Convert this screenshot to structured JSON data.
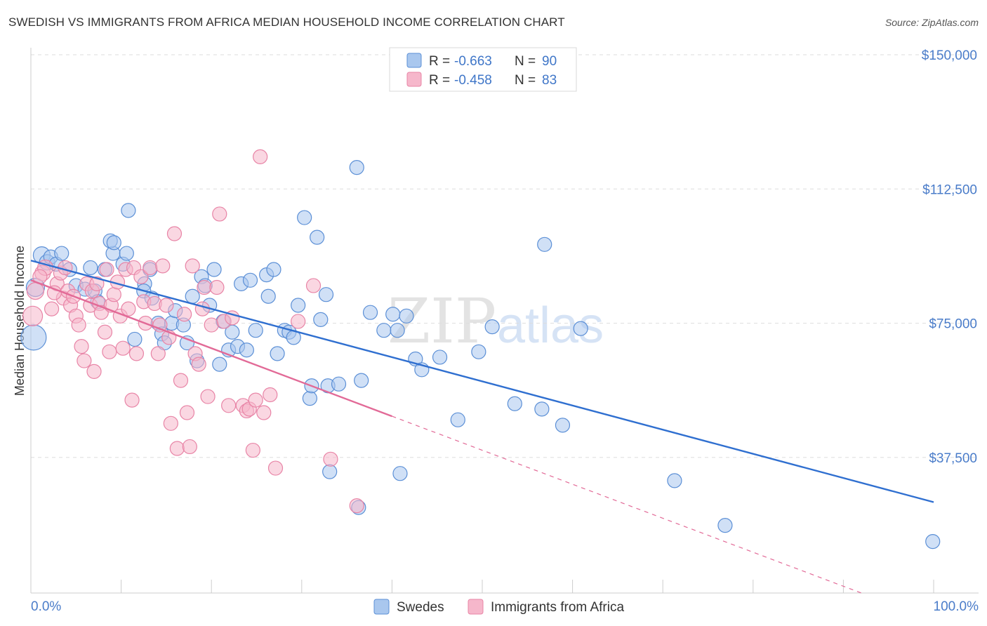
{
  "title": "SWEDISH VS IMMIGRANTS FROM AFRICA MEDIAN HOUSEHOLD INCOME CORRELATION CHART",
  "source": "Source: ZipAtlas.com",
  "watermark": {
    "zip": "ZIP",
    "atlas": "atlas"
  },
  "colors": {
    "swedes_fill": "#a9c7ee",
    "swedes_stroke": "#5b8fd6",
    "swedes_line": "#2f6fd0",
    "africa_fill": "#f6b7cb",
    "africa_stroke": "#e884a6",
    "africa_line": "#e26a97",
    "grid": "#dedede",
    "axis_text": "#4a7cc9"
  },
  "legend": {
    "rows": [
      {
        "r_label": "R =",
        "r_value": "-0.663",
        "n_label": "N =",
        "n_value": "90",
        "series": "swedes"
      },
      {
        "r_label": "R =",
        "r_value": "-0.458",
        "n_label": "N =",
        "n_value": "83",
        "series": "africa"
      }
    ]
  },
  "bottom_legend": [
    {
      "label": "Swedes",
      "series": "swedes"
    },
    {
      "label": "Immigrants from Africa",
      "series": "africa"
    }
  ],
  "chart_data": {
    "type": "scatter",
    "title": "SWEDISH VS IMMIGRANTS FROM AFRICA MEDIAN HOUSEHOLD INCOME CORRELATION CHART",
    "xlabel": "",
    "ylabel": "Median Household Income",
    "xlim": [
      0,
      100
    ],
    "ylim": [
      0,
      160000
    ],
    "x_ticks": [
      {
        "value": 0,
        "label": "0.0%"
      },
      {
        "value": 100,
        "label": "100.0%"
      }
    ],
    "y_ticks": [
      {
        "value": 37500,
        "label": "$37,500"
      },
      {
        "value": 75000,
        "label": "$75,000"
      },
      {
        "value": 112500,
        "label": "$112,500"
      },
      {
        "value": 150000,
        "label": "$150,000"
      }
    ],
    "grid": true,
    "legend_position": "top-center",
    "series": [
      {
        "name": "Swedes",
        "key": "swedes",
        "r": -0.663,
        "n": 90,
        "trend": {
          "x": [
            0,
            100
          ],
          "y": [
            92500,
            25000
          ],
          "dashed_from": null
        },
        "points": [
          [
            0.3,
            71000,
            18
          ],
          [
            0.5,
            85000,
            13
          ],
          [
            1.2,
            94000,
            12
          ],
          [
            1.8,
            92000,
            11
          ],
          [
            2.2,
            93500,
            10
          ],
          [
            2.8,
            91500,
            10
          ],
          [
            3.4,
            94500,
            10
          ],
          [
            4.3,
            90000,
            10
          ],
          [
            5.0,
            85500,
            10
          ],
          [
            6.0,
            84500,
            10
          ],
          [
            7.1,
            84000,
            10
          ],
          [
            7.4,
            81000,
            10
          ],
          [
            6.6,
            90500,
            10
          ],
          [
            8.2,
            90000,
            10
          ],
          [
            9.1,
            94500,
            10
          ],
          [
            8.8,
            98000,
            10
          ],
          [
            9.2,
            97500,
            10
          ],
          [
            10.2,
            91500,
            10
          ],
          [
            10.6,
            94500,
            10
          ],
          [
            10.8,
            106500,
            10
          ],
          [
            11.5,
            70500,
            10
          ],
          [
            12.6,
            86000,
            10
          ],
          [
            12.5,
            84000,
            10
          ],
          [
            13.4,
            82000,
            10
          ],
          [
            13.2,
            90000,
            10
          ],
          [
            14.1,
            75000,
            10
          ],
          [
            14.5,
            72000,
            10
          ],
          [
            14.8,
            69500,
            10
          ],
          [
            15.6,
            75000,
            10
          ],
          [
            16.0,
            78500,
            10
          ],
          [
            16.9,
            74500,
            10
          ],
          [
            17.3,
            69500,
            10
          ],
          [
            17.9,
            82500,
            10
          ],
          [
            18.4,
            64500,
            10
          ],
          [
            18.9,
            88000,
            10
          ],
          [
            19.3,
            85500,
            10
          ],
          [
            19.8,
            80000,
            10
          ],
          [
            20.3,
            90000,
            10
          ],
          [
            20.9,
            63500,
            10
          ],
          [
            21.3,
            75500,
            10
          ],
          [
            21.9,
            67500,
            10
          ],
          [
            22.3,
            72500,
            10
          ],
          [
            22.9,
            68500,
            10
          ],
          [
            23.3,
            86000,
            10
          ],
          [
            23.9,
            67500,
            10
          ],
          [
            24.3,
            87000,
            10
          ],
          [
            24.9,
            73000,
            10
          ],
          [
            26.1,
            88500,
            10
          ],
          [
            26.3,
            82500,
            10
          ],
          [
            26.9,
            90000,
            10
          ],
          [
            27.3,
            66500,
            10
          ],
          [
            28.1,
            73000,
            10
          ],
          [
            28.6,
            72500,
            10
          ],
          [
            29.1,
            71000,
            10
          ],
          [
            29.6,
            80000,
            10
          ],
          [
            30.3,
            104500,
            10
          ],
          [
            30.9,
            54000,
            10
          ],
          [
            31.1,
            57500,
            10
          ],
          [
            31.7,
            99000,
            10
          ],
          [
            32.1,
            76000,
            10
          ],
          [
            32.7,
            83000,
            10
          ],
          [
            32.9,
            57500,
            10
          ],
          [
            33.1,
            33500,
            10
          ],
          [
            34.1,
            58000,
            10
          ],
          [
            36.1,
            118500,
            10
          ],
          [
            36.6,
            59000,
            10
          ],
          [
            36.3,
            23500,
            10
          ],
          [
            37.6,
            78000,
            10
          ],
          [
            39.1,
            73000,
            10
          ],
          [
            40.1,
            77500,
            10
          ],
          [
            40.6,
            73000,
            10
          ],
          [
            40.9,
            33000,
            10
          ],
          [
            41.6,
            77000,
            10
          ],
          [
            42.6,
            65000,
            10
          ],
          [
            43.3,
            62000,
            10
          ],
          [
            45.3,
            65500,
            10
          ],
          [
            47.3,
            48000,
            10
          ],
          [
            49.6,
            67000,
            10
          ],
          [
            51.1,
            74000,
            10
          ],
          [
            53.6,
            52500,
            10
          ],
          [
            56.6,
            51000,
            10
          ],
          [
            56.9,
            97000,
            10
          ],
          [
            58.9,
            46500,
            10
          ],
          [
            60.9,
            73500,
            10
          ],
          [
            71.3,
            31000,
            10
          ],
          [
            76.9,
            18500,
            10
          ],
          [
            99.9,
            14000,
            10
          ]
        ]
      },
      {
        "name": "Immigrants from Africa",
        "key": "africa",
        "r": -0.458,
        "n": 83,
        "trend": {
          "x": [
            0,
            40
          ],
          "y": [
            87000,
            49000
          ],
          "dashed_to": 100,
          "dashed_y": -5000
        },
        "points": [
          [
            0.2,
            77000,
            14
          ],
          [
            0.5,
            84000,
            12
          ],
          [
            1.3,
            89000,
            11
          ],
          [
            1.6,
            90500,
            11
          ],
          [
            2.3,
            79000,
            10
          ],
          [
            2.9,
            86000,
            10
          ],
          [
            3.3,
            89000,
            10
          ],
          [
            3.6,
            82000,
            10
          ],
          [
            4.1,
            84000,
            10
          ],
          [
            4.4,
            80000,
            10
          ],
          [
            4.7,
            82500,
            10
          ],
          [
            5.0,
            77000,
            10
          ],
          [
            5.3,
            74500,
            10
          ],
          [
            5.6,
            68500,
            10
          ],
          [
            5.9,
            64500,
            10
          ],
          [
            6.2,
            86000,
            10
          ],
          [
            6.6,
            80000,
            10
          ],
          [
            6.8,
            84000,
            10
          ],
          [
            7.0,
            61500,
            10
          ],
          [
            7.3,
            86000,
            10
          ],
          [
            7.6,
            80500,
            10
          ],
          [
            7.8,
            78000,
            10
          ],
          [
            8.2,
            72500,
            10
          ],
          [
            8.4,
            90000,
            10
          ],
          [
            8.7,
            67000,
            10
          ],
          [
            8.9,
            80000,
            10
          ],
          [
            9.2,
            83000,
            10
          ],
          [
            9.6,
            86500,
            10
          ],
          [
            9.9,
            77000,
            10
          ],
          [
            10.2,
            68000,
            10
          ],
          [
            10.5,
            90000,
            10
          ],
          [
            10.8,
            79000,
            10
          ],
          [
            11.2,
            53500,
            10
          ],
          [
            11.4,
            90500,
            10
          ],
          [
            11.7,
            66500,
            10
          ],
          [
            12.2,
            88000,
            10
          ],
          [
            12.5,
            81000,
            10
          ],
          [
            12.7,
            75000,
            10
          ],
          [
            13.2,
            90500,
            10
          ],
          [
            13.7,
            80500,
            10
          ],
          [
            14.1,
            66500,
            10
          ],
          [
            14.3,
            74500,
            10
          ],
          [
            14.6,
            91000,
            10
          ],
          [
            15.0,
            80000,
            10
          ],
          [
            15.3,
            71000,
            10
          ],
          [
            15.5,
            47000,
            10
          ],
          [
            15.9,
            100000,
            10
          ],
          [
            16.2,
            40000,
            10
          ],
          [
            16.6,
            59000,
            10
          ],
          [
            17.0,
            77500,
            10
          ],
          [
            17.3,
            50000,
            10
          ],
          [
            17.6,
            40500,
            10
          ],
          [
            17.9,
            91000,
            10
          ],
          [
            18.2,
            66500,
            10
          ],
          [
            18.6,
            63500,
            10
          ],
          [
            19.0,
            79000,
            10
          ],
          [
            19.2,
            85000,
            10
          ],
          [
            19.6,
            54500,
            10
          ],
          [
            20.0,
            74500,
            10
          ],
          [
            20.6,
            85000,
            10
          ],
          [
            20.9,
            105500,
            10
          ],
          [
            21.4,
            75500,
            10
          ],
          [
            21.9,
            52000,
            10
          ],
          [
            22.3,
            76500,
            10
          ],
          [
            23.5,
            52000,
            10
          ],
          [
            23.9,
            50500,
            10
          ],
          [
            24.2,
            51000,
            10
          ],
          [
            24.6,
            39500,
            10
          ],
          [
            24.9,
            53500,
            10
          ],
          [
            25.4,
            121500,
            10
          ],
          [
            25.8,
            50000,
            10
          ],
          [
            26.5,
            55000,
            10
          ],
          [
            27.1,
            34500,
            10
          ],
          [
            29.6,
            75500,
            10
          ],
          [
            31.3,
            85500,
            10
          ],
          [
            33.2,
            37000,
            10
          ],
          [
            36.1,
            24000,
            10
          ],
          [
            2.6,
            83500,
            10
          ],
          [
            1.0,
            88000,
            10
          ],
          [
            3.8,
            90500,
            10
          ]
        ]
      }
    ]
  }
}
